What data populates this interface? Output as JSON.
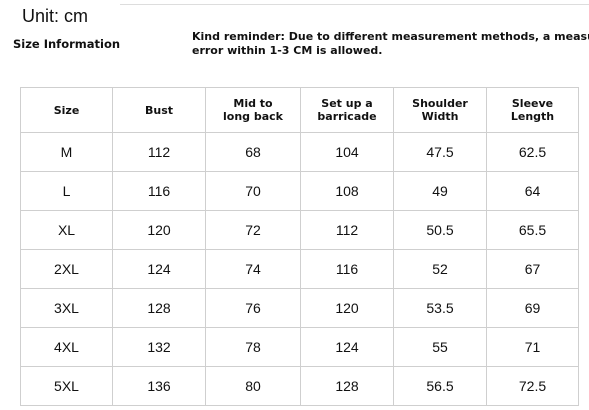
{
  "header": {
    "unit": "Unit: cm",
    "title": "Size Information",
    "reminder": [
      "Kind reminder: Due to different measurement methods, a measuremen",
      "error within 1-3 CM is allowed."
    ]
  },
  "table": {
    "columns": [
      "Size",
      "Bust",
      "Mid to long back",
      "Set up a barricade",
      "Shoulder Width",
      "Sleeve Length"
    ],
    "rows": [
      [
        "M",
        112,
        68,
        104,
        47.5,
        62.5
      ],
      [
        "L",
        116,
        70,
        108,
        49,
        64
      ],
      [
        "XL",
        120,
        72,
        112,
        50.5,
        65.5
      ],
      [
        "2XL",
        124,
        74,
        116,
        52,
        67
      ],
      [
        "3XL",
        128,
        76,
        120,
        53.5,
        69
      ],
      [
        "4XL",
        132,
        78,
        124,
        55,
        71
      ],
      [
        "5XL",
        136,
        80,
        128,
        56.5,
        72.5
      ]
    ]
  }
}
